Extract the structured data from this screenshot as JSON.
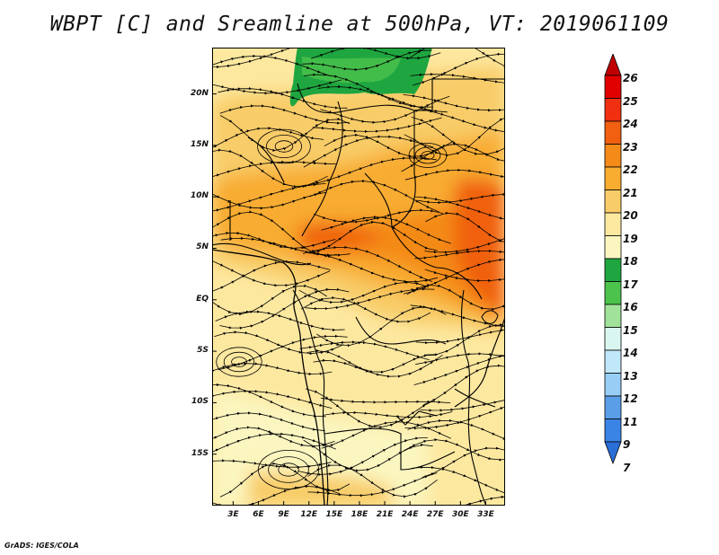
{
  "title": "WBPT [C] and Sreamline at 500hPa, VT: 2019061109",
  "credit": "GrADS: IGES/COLA",
  "map": {
    "lat_labels": [
      "20N",
      "15N",
      "10N",
      "5N",
      "EQ",
      "5S",
      "10S",
      "15S"
    ],
    "lat_values": [
      20,
      15,
      10,
      5,
      0,
      -5,
      -10,
      -15
    ],
    "lon_labels": [
      "3E",
      "6E",
      "9E",
      "12E",
      "15E",
      "18E",
      "21E",
      "24E",
      "27E",
      "30E",
      "33E"
    ],
    "lon_values": [
      3,
      6,
      9,
      12,
      15,
      18,
      21,
      24,
      27,
      30,
      33
    ],
    "lat_range": [
      -20,
      24.5
    ],
    "lon_range": [
      0.5,
      35.3
    ]
  },
  "colorbar": {
    "labels": [
      "26",
      "25",
      "24",
      "23",
      "22",
      "21",
      "20",
      "19",
      "18",
      "17",
      "16",
      "15",
      "14",
      "13",
      "12",
      "11",
      "9",
      "7"
    ],
    "colors": [
      "#c00000",
      "#e00000",
      "#f03010",
      "#f06010",
      "#f48a18",
      "#f8ac30",
      "#f8cc68",
      "#fde8a0",
      "#fbf6c0",
      "#1fa640",
      "#4cc34c",
      "#a0e29a",
      "#daf6f0",
      "#c0e8fa",
      "#98cef5",
      "#5a9ee8",
      "#3a84e6",
      "#2a6ed8"
    ]
  }
}
